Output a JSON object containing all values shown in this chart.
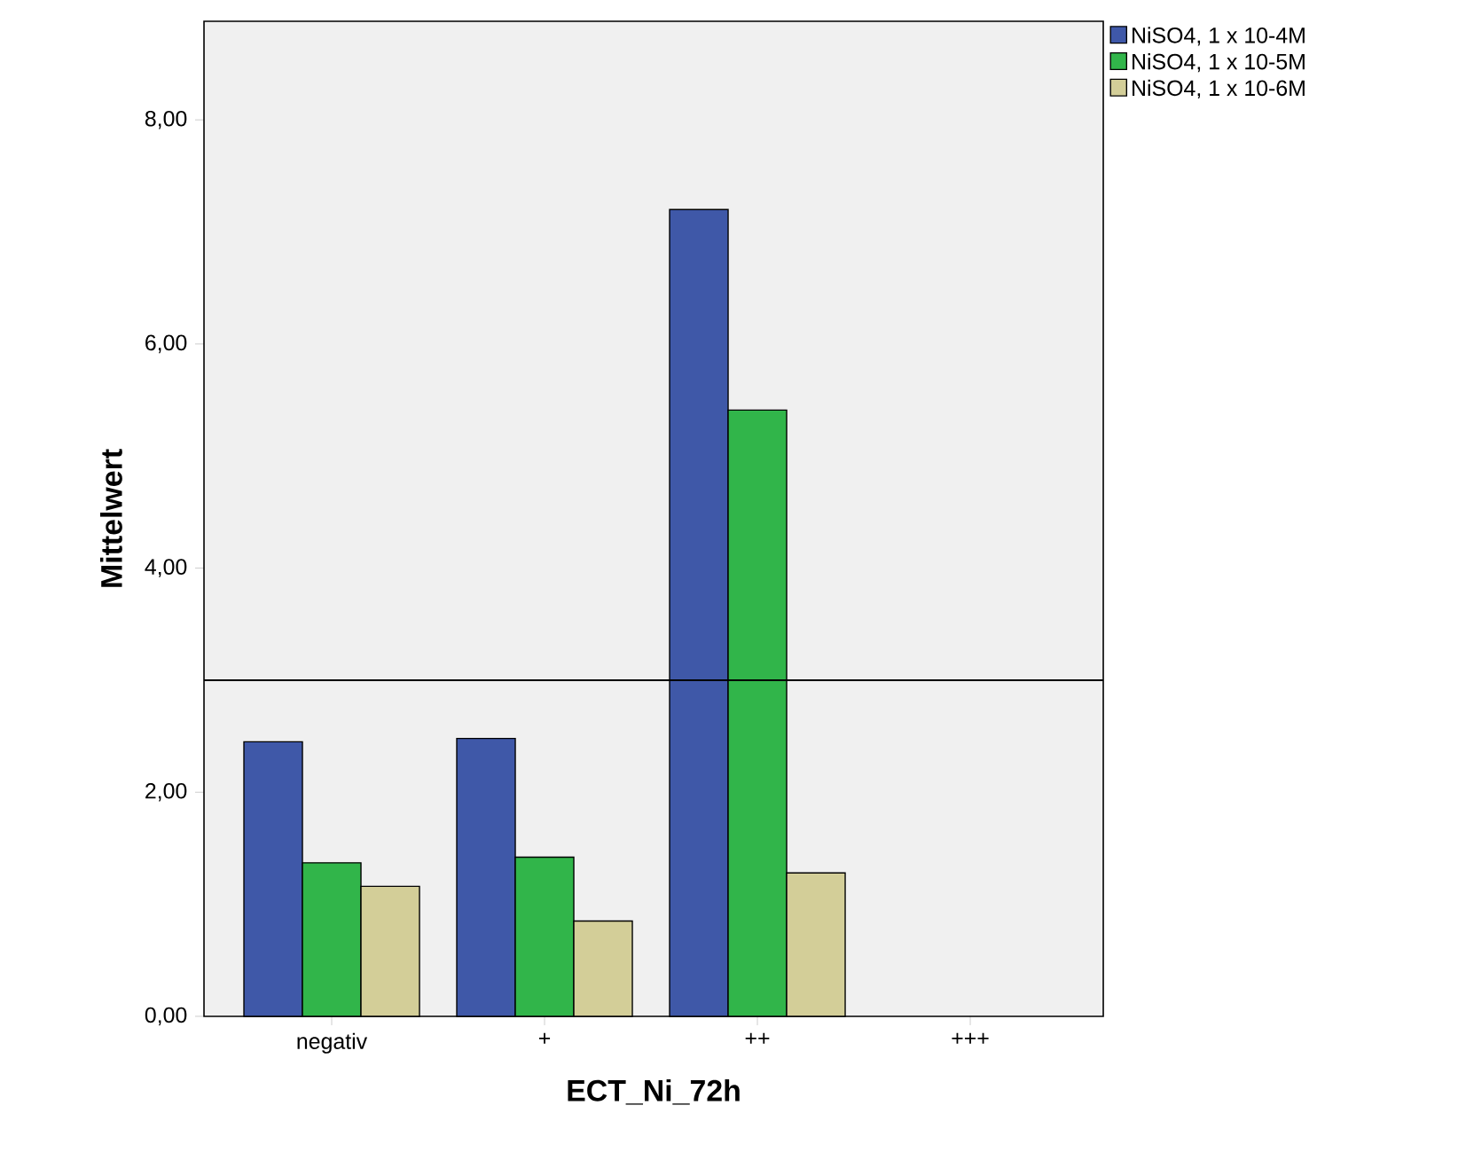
{
  "chart_data": {
    "type": "bar",
    "xlabel": "ECT_Ni_72h",
    "ylabel": "Mittelwert",
    "categories": [
      "negativ",
      "+",
      "++",
      "+++"
    ],
    "series": [
      {
        "name": "NiSO4, 1 x 10-4M",
        "color": "#3f58a8",
        "values": [
          2.45,
          2.48,
          7.2,
          null
        ]
      },
      {
        "name": "NiSO4, 1 x 10-5M",
        "color": "#31b54a",
        "values": [
          1.37,
          1.42,
          5.41,
          null
        ]
      },
      {
        "name": "NiSO4, 1 x 10-6M",
        "color": "#d3ce98",
        "values": [
          1.16,
          0.85,
          1.28,
          null
        ]
      }
    ],
    "ylim": [
      0,
      8.88
    ],
    "yticks": [
      {
        "value": 0,
        "label": "0,00"
      },
      {
        "value": 2,
        "label": "2,00"
      },
      {
        "value": 4,
        "label": "4,00"
      },
      {
        "value": 6,
        "label": "6,00"
      },
      {
        "value": 8,
        "label": "8,00"
      }
    ],
    "ref_lines": [
      {
        "axis": "y",
        "value": 3.0,
        "color": "#000000"
      }
    ],
    "grid": false,
    "legend": "top right"
  }
}
